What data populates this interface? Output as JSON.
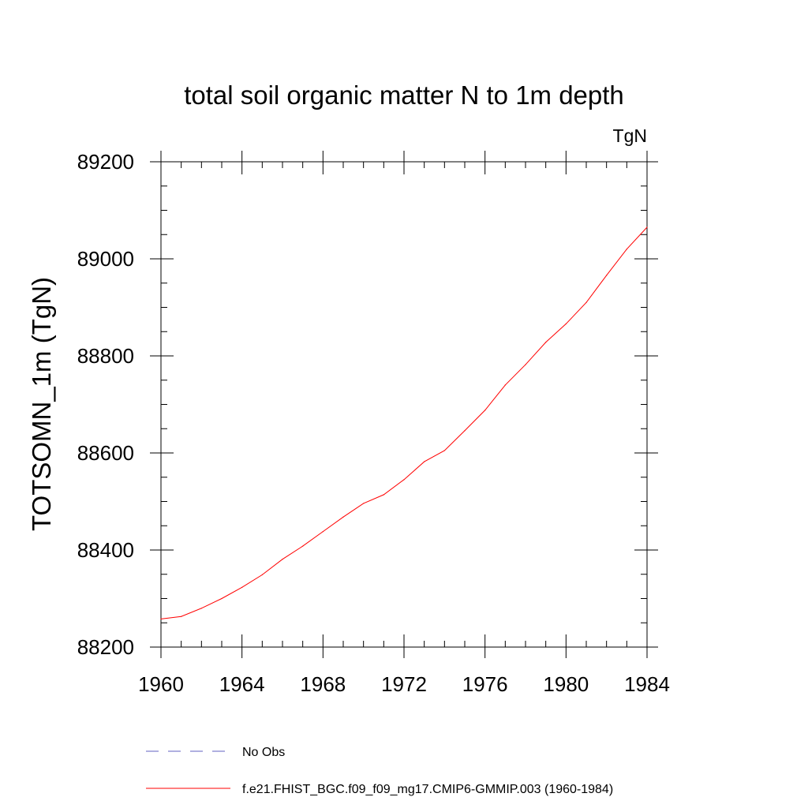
{
  "chart_data": {
    "type": "line",
    "title": "total soil organic matter N to 1m depth",
    "units_label": "TgN",
    "xlabel": "",
    "ylabel": "TOTSOMN_1m  (TgN)",
    "xlim": [
      1960,
      1984
    ],
    "ylim": [
      88200,
      89200
    ],
    "xticks": [
      1960,
      1964,
      1968,
      1972,
      1976,
      1980,
      1984
    ],
    "yticks": [
      88200,
      88400,
      88600,
      88800,
      89000,
      89200
    ],
    "x_minor_step": 1,
    "y_minor_step": 50,
    "grid": false,
    "legend_placement": "bottom",
    "series": [
      {
        "name": "No Obs",
        "color": "#6060c0",
        "dash": "dashed",
        "x": [],
        "values": []
      },
      {
        "name": "f.e21.FHIST_BGC.f09_f09_mg17.CMIP6-GMMIP.003 (1960-1984)",
        "color": "#ff0000",
        "dash": "solid",
        "x": [
          1960,
          1961,
          1962,
          1963,
          1964,
          1965,
          1966,
          1967,
          1968,
          1969,
          1970,
          1971,
          1972,
          1973,
          1974,
          1975,
          1976,
          1977,
          1978,
          1979,
          1980,
          1981,
          1982,
          1983,
          1984
        ],
        "values": [
          88258,
          88263,
          88280,
          88300,
          88323,
          88349,
          88381,
          88408,
          88438,
          88468,
          88496,
          88514,
          88545,
          88582,
          88605,
          88646,
          88688,
          88740,
          88782,
          88828,
          88866,
          88910,
          88966,
          89020,
          89065
        ]
      }
    ]
  }
}
